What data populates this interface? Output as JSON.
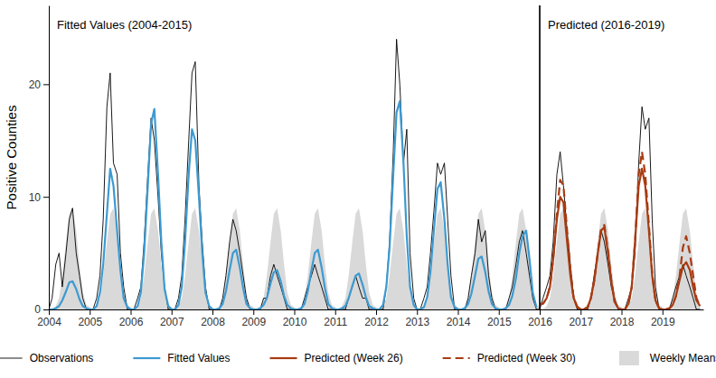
{
  "chart_data": {
    "type": "line",
    "y_label": "Positive Counties",
    "xlim": [
      2004,
      2020
    ],
    "xticks": [
      2004,
      2005,
      2006,
      2007,
      2008,
      2009,
      2010,
      2011,
      2012,
      2013,
      2014,
      2015,
      2016,
      2017,
      2018,
      2019
    ],
    "ylim": [
      0,
      27
    ],
    "yticks": [
      0,
      10,
      20
    ],
    "grid": false,
    "legend": "bottom",
    "regions": [
      {
        "label": "Fitted Values (2004-2015)",
        "start": 2004,
        "end": 2016
      },
      {
        "label": "Predicted (2016-2019)",
        "start": 2016,
        "end": 2020
      }
    ],
    "x": [
      2004,
      2004.08,
      2004.17,
      2004.25,
      2004.33,
      2004.42,
      2004.5,
      2004.58,
      2004.67,
      2004.75,
      2004.83,
      2004.92,
      2005,
      2005.08,
      2005.17,
      2005.25,
      2005.33,
      2005.42,
      2005.5,
      2005.58,
      2005.67,
      2005.75,
      2005.83,
      2005.92,
      2006,
      2006.08,
      2006.17,
      2006.25,
      2006.33,
      2006.42,
      2006.5,
      2006.58,
      2006.67,
      2006.75,
      2006.83,
      2006.92,
      2007,
      2007.08,
      2007.17,
      2007.25,
      2007.33,
      2007.42,
      2007.5,
      2007.58,
      2007.67,
      2007.75,
      2007.83,
      2007.92,
      2008,
      2008.08,
      2008.17,
      2008.25,
      2008.33,
      2008.42,
      2008.5,
      2008.58,
      2008.67,
      2008.75,
      2008.83,
      2008.92,
      2009,
      2009.08,
      2009.17,
      2009.25,
      2009.33,
      2009.42,
      2009.5,
      2009.58,
      2009.67,
      2009.75,
      2009.83,
      2009.92,
      2010,
      2010.08,
      2010.17,
      2010.25,
      2010.33,
      2010.42,
      2010.5,
      2010.58,
      2010.67,
      2010.75,
      2010.83,
      2010.92,
      2011,
      2011.08,
      2011.17,
      2011.25,
      2011.33,
      2011.42,
      2011.5,
      2011.58,
      2011.67,
      2011.75,
      2011.83,
      2011.92,
      2012,
      2012.08,
      2012.17,
      2012.25,
      2012.33,
      2012.42,
      2012.5,
      2012.58,
      2012.67,
      2012.75,
      2012.83,
      2012.92,
      2013,
      2013.08,
      2013.17,
      2013.25,
      2013.33,
      2013.42,
      2013.5,
      2013.58,
      2013.67,
      2013.75,
      2013.83,
      2013.92,
      2014,
      2014.08,
      2014.17,
      2014.25,
      2014.33,
      2014.42,
      2014.5,
      2014.58,
      2014.67,
      2014.75,
      2014.83,
      2014.92,
      2015,
      2015.08,
      2015.17,
      2015.25,
      2015.33,
      2015.42,
      2015.5,
      2015.58,
      2015.67,
      2015.75,
      2015.83,
      2015.92,
      2016,
      2016.08,
      2016.17,
      2016.25,
      2016.33,
      2016.42,
      2016.5,
      2016.58,
      2016.67,
      2016.75,
      2016.83,
      2016.92,
      2017,
      2017.08,
      2017.17,
      2017.25,
      2017.33,
      2017.42,
      2017.5,
      2017.58,
      2017.67,
      2017.75,
      2017.83,
      2017.92,
      2018,
      2018.08,
      2018.17,
      2018.25,
      2018.33,
      2018.42,
      2018.5,
      2018.58,
      2018.67,
      2018.75,
      2018.83,
      2018.92,
      2019,
      2019.08,
      2019.17,
      2019.25,
      2019.33,
      2019.42,
      2019.5,
      2019.58,
      2019.67,
      2019.75,
      2019.83,
      2019.92
    ],
    "series": [
      {
        "name": "Weekly Means",
        "type": "area",
        "color": "#d9d9d9",
        "values": [
          0.2,
          0,
          0.3,
          1,
          3,
          6,
          8.5,
          9,
          7,
          4,
          1.5,
          0.4,
          0.2,
          0,
          0.3,
          1,
          3,
          6,
          8.5,
          9,
          7,
          4,
          1.5,
          0.4,
          0.2,
          0,
          0.3,
          1,
          3,
          6,
          8.5,
          9,
          7,
          4,
          1.5,
          0.4,
          0.2,
          0,
          0.3,
          1,
          3,
          6,
          8.5,
          9,
          7,
          4,
          1.5,
          0.4,
          0.2,
          0,
          0.3,
          1,
          3,
          6,
          8.5,
          9,
          7,
          4,
          1.5,
          0.4,
          0.2,
          0,
          0.3,
          1,
          3,
          6,
          8.5,
          9,
          7,
          4,
          1.5,
          0.4,
          0.2,
          0,
          0.3,
          1,
          3,
          6,
          8.5,
          9,
          7,
          4,
          1.5,
          0.4,
          0.2,
          0,
          0.3,
          1,
          3,
          6,
          8.5,
          9,
          7,
          4,
          1.5,
          0.4,
          0.2,
          0,
          0.3,
          1,
          3,
          6,
          8.5,
          9,
          7,
          4,
          1.5,
          0.4,
          0.2,
          0,
          0.3,
          1,
          3,
          6,
          8.5,
          9,
          7,
          4,
          1.5,
          0.4,
          0.2,
          0,
          0.3,
          1,
          3,
          6,
          8.5,
          9,
          7,
          4,
          1.5,
          0.4,
          0.2,
          0,
          0.3,
          1,
          3,
          6,
          8.5,
          9,
          7,
          4,
          1.5,
          0.4,
          0.2,
          0,
          0.3,
          1,
          3,
          6,
          8.5,
          9,
          7,
          4,
          1.5,
          0.4,
          0.2,
          0,
          0.3,
          1,
          3,
          6,
          8.5,
          9,
          7,
          4,
          1.5,
          0.4,
          0.2,
          0,
          0.3,
          1,
          3,
          6,
          8.5,
          9,
          7,
          4,
          1.5,
          0.4,
          0.2,
          0,
          0.3,
          1,
          3,
          6,
          8.5,
          9,
          7,
          4,
          1.5,
          0.4
        ]
      },
      {
        "name": "Observations",
        "type": "line",
        "line_style": "solid",
        "color": "#000000",
        "values": [
          0,
          1,
          4,
          5,
          2,
          5,
          8,
          9,
          5,
          3,
          1,
          0,
          0,
          0,
          1,
          3,
          8,
          18,
          21,
          13,
          12,
          5,
          2,
          0,
          0,
          0,
          1,
          2,
          6,
          12,
          17,
          15,
          10,
          5,
          2,
          0,
          0,
          0,
          1,
          3,
          8,
          15,
          21,
          22,
          11,
          6,
          2,
          0,
          0,
          0,
          0,
          1,
          3,
          6,
          8,
          7,
          5,
          3,
          1,
          0,
          0,
          0,
          0,
          1,
          1,
          3,
          4,
          3,
          2,
          1,
          0,
          0,
          0,
          0,
          0,
          1,
          2,
          3,
          4,
          3,
          2,
          1,
          0,
          0,
          0,
          0,
          0,
          0,
          1,
          2,
          3,
          2,
          1,
          1,
          0,
          0,
          0,
          0,
          0,
          2,
          6,
          14,
          24,
          20,
          13,
          16,
          5,
          1,
          0,
          0,
          1,
          2,
          5,
          9,
          13,
          12,
          13,
          8,
          3,
          0,
          0,
          0,
          0,
          1,
          3,
          5,
          8,
          6,
          7,
          3,
          1,
          0,
          0,
          0,
          0,
          1,
          2,
          4,
          6,
          7,
          5,
          3,
          1,
          0,
          0,
          1,
          2,
          3,
          6,
          12,
          14,
          11,
          7,
          4,
          1,
          0,
          0,
          0,
          0,
          1,
          3,
          5,
          7,
          6,
          4,
          2,
          1,
          0,
          0,
          0,
          1,
          2,
          5,
          13,
          18,
          16,
          17,
          8,
          2,
          0,
          0,
          0,
          0,
          1,
          2,
          3,
          4,
          3,
          2,
          1,
          0,
          0
        ]
      },
      {
        "name": "Fitted Values",
        "type": "line",
        "line_style": "solid",
        "color": "#3d9ad1",
        "values": [
          0,
          0,
          0.1,
          0.3,
          0.8,
          1.6,
          2.4,
          2.5,
          1.8,
          0.9,
          0.3,
          0.1,
          0,
          0,
          0.3,
          1.5,
          4,
          8.5,
          12.5,
          11,
          7,
          3.5,
          1,
          0.2,
          0,
          0,
          0.3,
          1.5,
          5,
          11,
          16.5,
          17.8,
          12,
          6,
          1.8,
          0.3,
          0,
          0,
          0.4,
          2,
          6,
          12,
          16,
          15,
          10,
          5,
          1.5,
          0.3,
          0,
          0,
          0.1,
          0.5,
          1.6,
          3.5,
          5,
          5.3,
          3.7,
          1.9,
          0.5,
          0.1,
          0,
          0,
          0.1,
          0.4,
          1,
          2.3,
          3.3,
          3.5,
          2.5,
          1.2,
          0.4,
          0.1,
          0,
          0,
          0.1,
          0.5,
          1.6,
          3.5,
          5,
          5.3,
          3.7,
          1.9,
          0.5,
          0.1,
          0,
          0,
          0.1,
          0.3,
          1,
          2.1,
          3,
          3.2,
          2.2,
          1.1,
          0.3,
          0.1,
          0,
          0,
          0.4,
          2,
          5.5,
          12,
          17.5,
          18.5,
          13,
          6.5,
          2,
          0.4,
          0,
          0,
          0.2,
          1.1,
          3.4,
          7.3,
          10.7,
          11.3,
          8,
          4,
          1.1,
          0.2,
          0,
          0,
          0.1,
          0.5,
          1.4,
          3,
          4.5,
          4.7,
          3.3,
          1.6,
          0.5,
          0.1,
          0,
          0,
          0.1,
          0.4,
          1.2,
          2.8,
          5,
          6.5,
          7,
          4.5,
          1.5,
          0.2,
          null,
          null,
          null,
          null,
          null,
          null,
          null,
          null,
          null,
          null,
          null,
          null,
          null,
          null,
          null,
          null,
          null,
          null,
          null,
          null,
          null,
          null,
          null,
          null,
          null,
          null,
          null,
          null,
          null,
          null,
          null,
          null,
          null,
          null,
          null,
          null,
          null,
          null,
          null,
          null,
          null,
          null,
          null,
          null,
          null,
          null,
          null,
          null
        ]
      },
      {
        "name": "Predicted (Week 26)",
        "type": "line",
        "line_style": "solid",
        "color": "#a83c12",
        "values": [
          null,
          null,
          null,
          null,
          null,
          null,
          null,
          null,
          null,
          null,
          null,
          null,
          null,
          null,
          null,
          null,
          null,
          null,
          null,
          null,
          null,
          null,
          null,
          null,
          null,
          null,
          null,
          null,
          null,
          null,
          null,
          null,
          null,
          null,
          null,
          null,
          null,
          null,
          null,
          null,
          null,
          null,
          null,
          null,
          null,
          null,
          null,
          null,
          null,
          null,
          null,
          null,
          null,
          null,
          null,
          null,
          null,
          null,
          null,
          null,
          null,
          null,
          null,
          null,
          null,
          null,
          null,
          null,
          null,
          null,
          null,
          null,
          null,
          null,
          null,
          null,
          null,
          null,
          null,
          null,
          null,
          null,
          null,
          null,
          null,
          null,
          null,
          null,
          null,
          null,
          null,
          null,
          null,
          null,
          null,
          null,
          null,
          null,
          null,
          null,
          null,
          null,
          null,
          null,
          null,
          null,
          null,
          null,
          null,
          null,
          null,
          null,
          null,
          null,
          null,
          null,
          null,
          null,
          null,
          null,
          null,
          null,
          null,
          null,
          null,
          null,
          null,
          null,
          null,
          null,
          null,
          null,
          null,
          null,
          null,
          null,
          null,
          null,
          null,
          null,
          null,
          null,
          null,
          null,
          0.5,
          0.5,
          1,
          2,
          4.5,
          8,
          10,
          9.5,
          6,
          3,
          1,
          0.2,
          0,
          0,
          0.2,
          1,
          2.5,
          5,
          7,
          7.3,
          5,
          2.5,
          0.7,
          0.1,
          0,
          0,
          0.5,
          2,
          6,
          11,
          12.5,
          11,
          7,
          3,
          0.8,
          0.1,
          0,
          0,
          0.1,
          0.4,
          1.2,
          2.6,
          3.8,
          4.2,
          3.5,
          2,
          0.8,
          0.3
        ]
      },
      {
        "name": "Predicted (Week 30)",
        "type": "line",
        "line_style": "dashed",
        "color": "#a83c12",
        "values": [
          null,
          null,
          null,
          null,
          null,
          null,
          null,
          null,
          null,
          null,
          null,
          null,
          null,
          null,
          null,
          null,
          null,
          null,
          null,
          null,
          null,
          null,
          null,
          null,
          null,
          null,
          null,
          null,
          null,
          null,
          null,
          null,
          null,
          null,
          null,
          null,
          null,
          null,
          null,
          null,
          null,
          null,
          null,
          null,
          null,
          null,
          null,
          null,
          null,
          null,
          null,
          null,
          null,
          null,
          null,
          null,
          null,
          null,
          null,
          null,
          null,
          null,
          null,
          null,
          null,
          null,
          null,
          null,
          null,
          null,
          null,
          null,
          null,
          null,
          null,
          null,
          null,
          null,
          null,
          null,
          null,
          null,
          null,
          null,
          null,
          null,
          null,
          null,
          null,
          null,
          null,
          null,
          null,
          null,
          null,
          null,
          null,
          null,
          null,
          null,
          null,
          null,
          null,
          null,
          null,
          null,
          null,
          null,
          null,
          null,
          null,
          null,
          null,
          null,
          null,
          null,
          null,
          null,
          null,
          null,
          null,
          null,
          null,
          null,
          null,
          null,
          null,
          null,
          null,
          null,
          null,
          null,
          null,
          null,
          null,
          null,
          null,
          null,
          null,
          null,
          null,
          null,
          null,
          null,
          0.5,
          0.5,
          1,
          2,
          4.5,
          8.5,
          11.5,
          11,
          7,
          3.5,
          1,
          0.2,
          0,
          0,
          0.2,
          1,
          2.5,
          5,
          7.2,
          7.5,
          5.2,
          2.6,
          0.7,
          0.1,
          0,
          0,
          0.5,
          2,
          6,
          12,
          14,
          12,
          7.5,
          3.2,
          0.8,
          0.1,
          0,
          0,
          0.1,
          0.4,
          1.2,
          3,
          5.5,
          6.5,
          5,
          3,
          1,
          0.3
        ]
      }
    ]
  }
}
